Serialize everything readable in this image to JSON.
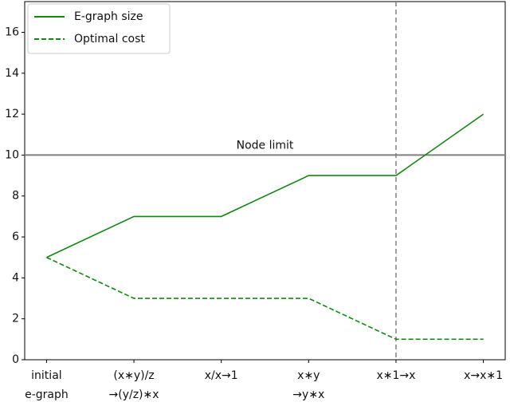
{
  "chart_data": {
    "type": "line",
    "categories": [
      "initial\ne-graph",
      "(x∗y)/z\n→(y/z)∗x",
      "x/x→1",
      "x∗y\n→y∗x",
      "x∗1→x",
      "x→x∗1"
    ],
    "series": [
      {
        "name": "E-graph size",
        "color": "#118811",
        "dash": false,
        "values": [
          5,
          7,
          7,
          9,
          9,
          12
        ]
      },
      {
        "name": "Optimal cost",
        "color": "#118811",
        "dash": true,
        "values": [
          5,
          3,
          3,
          3,
          1,
          1
        ]
      }
    ],
    "ylim": [
      0,
      17.5
    ],
    "yticks": [
      0,
      2,
      4,
      6,
      8,
      10,
      12,
      14,
      16
    ],
    "hline": {
      "value": 10,
      "label": "Node limit",
      "color": "#808080"
    },
    "vline": {
      "category": 4,
      "color": "#808080"
    },
    "legend": "upper left"
  }
}
